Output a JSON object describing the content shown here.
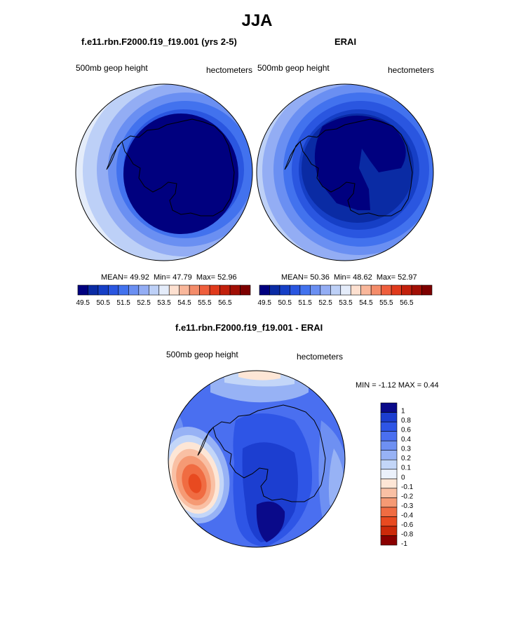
{
  "figure": {
    "title": "JJA",
    "panels": [
      {
        "title": "f.e11.rbn.F2000.f19_f19.001 (yrs 2-5)",
        "left_label": "500mb geop height",
        "right_label": "hectometers",
        "stats": {
          "mean_label": "MEAN=",
          "mean": "49.92",
          "min_label": "Min=",
          "min": "47.79",
          "max_label": "Max=",
          "max": "52.96"
        }
      },
      {
        "title": "ERAI",
        "left_label": "500mb geop height",
        "right_label": "hectometers",
        "stats": {
          "mean_label": "MEAN=",
          "mean": "50.36",
          "min_label": "Min=",
          "min": "48.62",
          "max_label": "Max=",
          "max": "52.97"
        }
      },
      {
        "title": "f.e11.rbn.F2000.f19_f19.001 - ERAI",
        "left_label": "500mb geop height",
        "right_label": "hectometers",
        "stats_text": "MIN =  -1.12 MAX =   0.44"
      }
    ],
    "horizontal_colorbar": {
      "colors": [
        "#00007f",
        "#0a2ba4",
        "#163fc6",
        "#2a56e0",
        "#4272ee",
        "#6a8ff2",
        "#93adf4",
        "#bdd0f7",
        "#e4ecfa",
        "#fde0d0",
        "#f9b79b",
        "#f48c6a",
        "#ef5f3d",
        "#e03a1c",
        "#c2200c",
        "#a10f05",
        "#7d0000"
      ],
      "tick_labels": [
        "49.5",
        "50.5",
        "51.5",
        "52.5",
        "53.5",
        "54.5",
        "55.5",
        "56.5"
      ]
    },
    "vertical_colorbar": {
      "colors": [
        "#0a0a8a",
        "#1c3ed0",
        "#2e55e6",
        "#4a6ff0",
        "#6e90f2",
        "#97b2f5",
        "#c3d6f8",
        "#ebf1fb",
        "#fde6d6",
        "#f9c0a4",
        "#f59a74",
        "#f06c42",
        "#e84a20",
        "#cc2a0a",
        "#8a0000"
      ],
      "tick_labels": [
        "1",
        "0.8",
        "0.6",
        "0.4",
        "0.3",
        "0.2",
        "0.1",
        "0",
        "-0.1",
        "-0.2",
        "-0.3",
        "-0.4",
        "-0.6",
        "-0.8",
        "-1"
      ]
    }
  }
}
